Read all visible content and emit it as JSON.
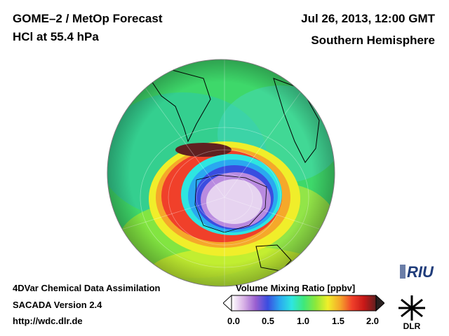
{
  "header": {
    "title_line1": "GOME–2 / MetOp Forecast",
    "title_line2": "HCl at 55.4 hPa",
    "date": "Jul 26, 2013, 12:00 GMT",
    "region": "Southern Hemisphere"
  },
  "footer": {
    "line1": "4DVar Chemical Data Assimilation",
    "line2": "SACADA Version 2.4",
    "line3": "http://wdc.dlr.de"
  },
  "colorbar": {
    "title": "Volume Mixing Ratio [ppbv]",
    "ticks": [
      "0.0",
      "0.5",
      "1.0",
      "1.5",
      "2.0"
    ],
    "min": 0.0,
    "max": 2.0,
    "colors": [
      "#ffffff",
      "#d9b3e6",
      "#9a5fd0",
      "#3a4de0",
      "#2aa8f0",
      "#2ee6e0",
      "#3ee87a",
      "#8ee83a",
      "#f0ee2a",
      "#f5a82a",
      "#f0402a",
      "#c81818",
      "#602020"
    ]
  },
  "logos": {
    "riu": "RIU",
    "dlr": "DLR"
  },
  "icons": {
    "riu_logo": "riu-logo-icon",
    "dlr_logo": "dlr-logo-icon"
  }
}
